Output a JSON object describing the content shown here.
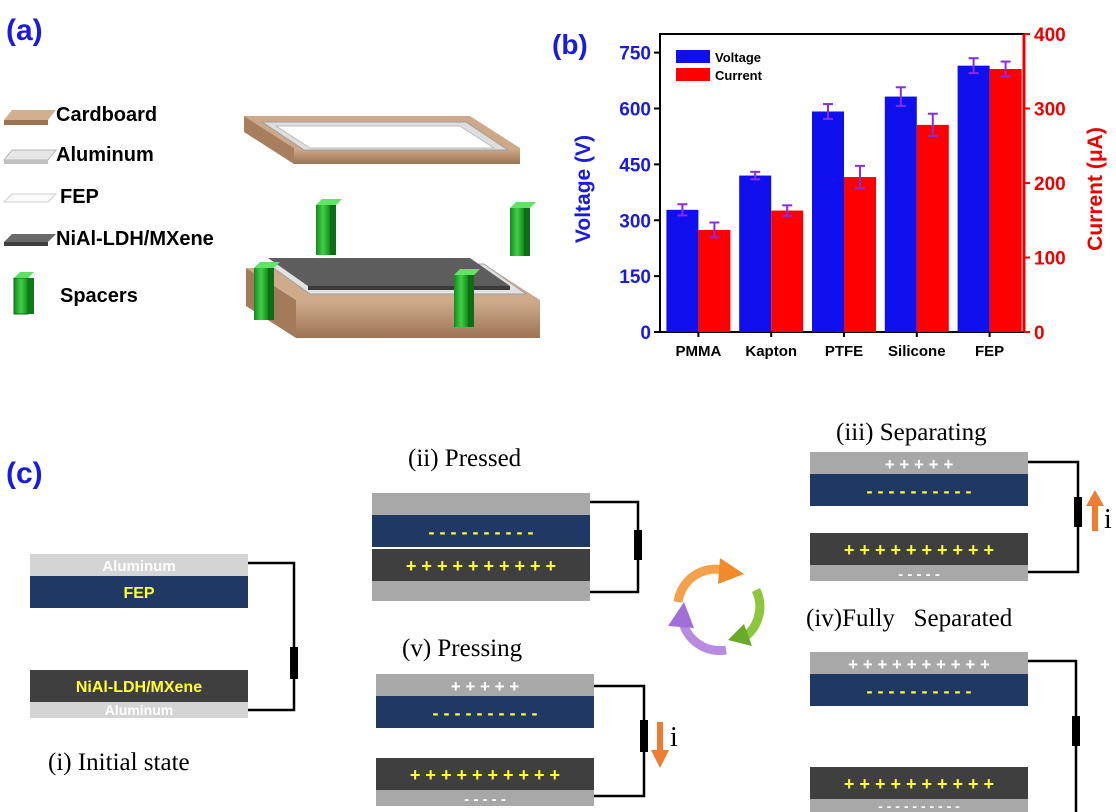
{
  "panels": {
    "a": "(a)",
    "b": "(b)",
    "c": "(c)"
  },
  "legend_a": [
    {
      "label": "Cardboard",
      "color": "#b98e6c"
    },
    {
      "label": "Aluminum",
      "color": "#d6d6d6"
    },
    {
      "label": "FEP",
      "color": "#f6f6f6"
    },
    {
      "label": "NiAl-LDH/MXene",
      "color": "#5a5a5a"
    },
    {
      "label": "Spacers",
      "color": "#22a52a"
    }
  ],
  "chart_data": {
    "type": "bar",
    "categories": [
      "PMMA",
      "Kapton",
      "PTFE",
      "Silicone",
      "FEP"
    ],
    "series": [
      {
        "name": "Voltage",
        "axis": "left",
        "color": "#1010ee",
        "values": [
          328,
          420,
          592,
          632,
          715
        ],
        "errors": [
          15,
          10,
          20,
          25,
          20
        ]
      },
      {
        "name": "Current",
        "axis": "right",
        "color": "#ff0000",
        "values": [
          137,
          163,
          208,
          278,
          353
        ],
        "errors": [
          10,
          7,
          15,
          15,
          10
        ]
      }
    ],
    "ylabel": "Voltage (V)",
    "y2label": "Current (μA)",
    "ylim": [
      0,
      800
    ],
    "y2lim": [
      0,
      400
    ],
    "yticks": [
      "0",
      "150",
      "300",
      "450",
      "600",
      "750"
    ],
    "y2ticks": [
      "0",
      "100",
      "200",
      "300",
      "400"
    ],
    "legend_placement": "top-left",
    "errorbar_color": "#8a2be2"
  },
  "states": {
    "i": {
      "title": "(i) Initial state",
      "top_layers": [
        "Aluminum",
        "FEP"
      ],
      "bottom_layers": [
        "NiAl-LDH/MXene",
        "Aluminum"
      ]
    },
    "ii": {
      "title": "(ii) Pressed",
      "neg": "- - - - - - - - - -",
      "pos": "+ + + + + + + + + +"
    },
    "iii": {
      "title": "(iii) Separating",
      "top_pos": "+ + + + +",
      "neg": "- - - - - - - - - -",
      "pos": "+ + + + + + + + + +",
      "bottom_neg": "- - - - -",
      "current": "i"
    },
    "iv": {
      "title": "(iv)Fully   Separated",
      "top_pos": "+ + + + + + + + + +",
      "neg": "- - - - - - - - - -",
      "pos": "+ + + + + + + + + +",
      "bottom_neg": "- - - - - - - - - -"
    },
    "v": {
      "title": "(v) Pressing",
      "top_pos": "+ + + + +",
      "neg": "- - - - - - - - - -",
      "pos": "+ + + + + + + + + +",
      "bottom_neg": "- - - - -",
      "current": "i"
    }
  }
}
